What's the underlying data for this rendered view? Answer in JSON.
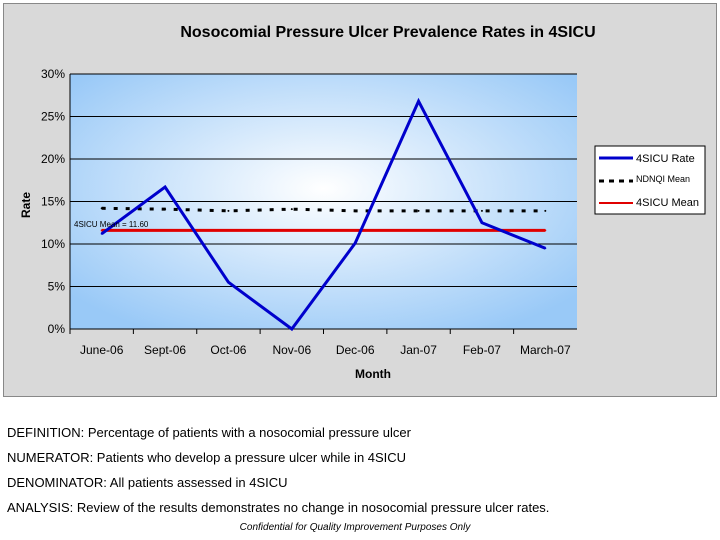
{
  "chart_data": {
    "type": "line",
    "title": "Nosocomial Pressure Ulcer Prevalence Rates in 4SICU",
    "xlabel": "Month",
    "ylabel": "Rate",
    "categories": [
      "June-06",
      "Sept-06",
      "Oct-06",
      "Nov-06",
      "Dec-06",
      "Jan-07",
      "Feb-07",
      "March-07"
    ],
    "ylim": [
      0,
      30
    ],
    "yticks": [
      "0%",
      "5%",
      "10%",
      "15%",
      "20%",
      "25%",
      "30%"
    ],
    "grid": true,
    "legend_position": "right",
    "series": [
      {
        "name": "4SICU Rate",
        "values": [
          11.2,
          16.7,
          5.5,
          0,
          10.1,
          26.8,
          12.5,
          9.5
        ],
        "color": "#0000cc",
        "style": "solid"
      },
      {
        "name": "NDNQI Mean",
        "values": [
          14.2,
          14.1,
          13.9,
          14.1,
          13.9,
          13.9,
          13.9,
          13.9
        ],
        "color": "#000000",
        "style": "dotted"
      },
      {
        "name": "4SICU Mean",
        "values": [
          11.6,
          11.6,
          11.6,
          11.6,
          11.6,
          11.6,
          11.6,
          11.6
        ],
        "color": "#e00000",
        "style": "solid"
      }
    ],
    "annotations": [
      "4SICU Mean = 11.60"
    ]
  },
  "notes": {
    "definition": "DEFINITION: Percentage of patients with a nosocomial pressure ulcer",
    "numerator": "NUMERATOR: Patients who develop a pressure ulcer while in 4SICU",
    "denominator": "DENOMINATOR: All patients assessed in 4SICU",
    "analysis": "ANALYSIS: Review of the results demonstrates no change in nosocomial pressure ulcer rates.",
    "confidential": "Confidential for Quality Improvement Purposes Only"
  }
}
